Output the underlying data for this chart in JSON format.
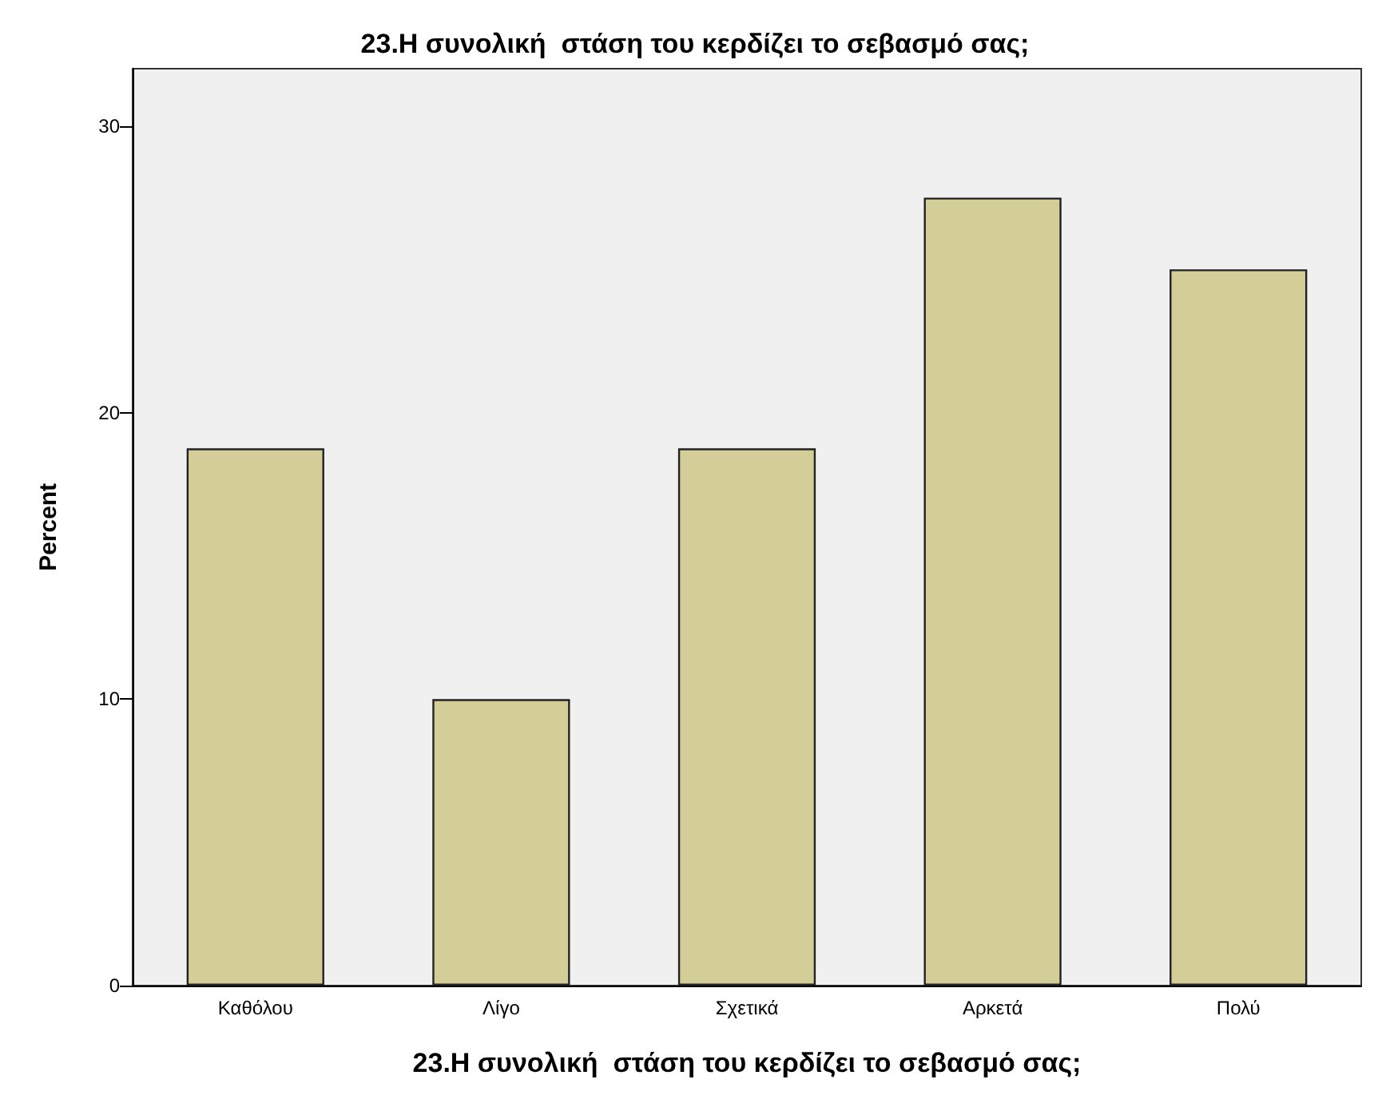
{
  "chart_data": {
    "type": "bar",
    "title": "23.Η συνολική  στάση του κερδίζει το σεβασμό σας;",
    "xlabel": "23.Η συνολική  στάση του κερδίζει το σεβασμό σας;",
    "ylabel": "Percent",
    "categories": [
      "Καθόλου",
      "Λίγο",
      "Σχετικά",
      "Αρκετά",
      "Πολύ"
    ],
    "values": [
      18.75,
      10,
      18.75,
      27.5,
      25
    ],
    "color": "#d3ce97",
    "ylim": [
      0,
      32
    ],
    "yticks": [
      0,
      10,
      20,
      30
    ],
    "grid": false
  }
}
